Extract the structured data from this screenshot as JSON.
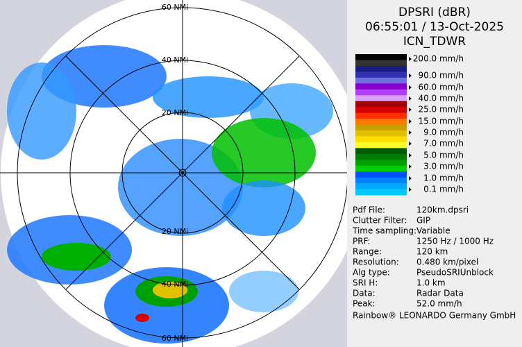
{
  "map": {
    "ring_labels_top": [
      "60 NMi",
      "40 NMi",
      "20 NMi"
    ],
    "ring_labels_bottom": [
      "20 NMi",
      "40 NMi",
      "60 NMi"
    ]
  },
  "panel": {
    "title": [
      "DPSRI (dBR)",
      "06:55:01 / 13-Oct-2025",
      "ICN_TDWR"
    ],
    "legend_colors": [
      "#000000",
      "#333333",
      "#1a1a80",
      "#3030b0",
      "#7070e0",
      "#8800cc",
      "#b040ff",
      "#d8a0ff",
      "#a00000",
      "#d80000",
      "#ff3000",
      "#ff7a00",
      "#c8a000",
      "#e0c000",
      "#ffe000",
      "#ffff30",
      "#005a00",
      "#007a00",
      "#00a000",
      "#00d000",
      "#0050ff",
      "#0080ff",
      "#00a8ff",
      "#00c8ff"
    ],
    "legend_labels": [
      "200.0 mm/h",
      "90.0 mm/h",
      "60.0 mm/h",
      "40.0 mm/h",
      "25.0 mm/h",
      "15.0 mm/h",
      "9.0 mm/h",
      "7.0 mm/h",
      "5.0 mm/h",
      "3.0 mm/h",
      "1.0 mm/h",
      "0.1 mm/h"
    ],
    "info": [
      [
        "Pdf File:",
        "120km.dpsri"
      ],
      [
        "Clutter Filter:",
        "GIP"
      ],
      [
        "Time sampling:",
        "Variable"
      ],
      [
        "PRF:",
        "1250 Hz / 1000 Hz"
      ],
      [
        "Range:",
        "120 km"
      ],
      [
        "Resolution:",
        "0.480 km/pixel"
      ],
      [
        "Alg type:",
        "PseudoSRIUnblock"
      ],
      [
        "SRI H:",
        "1.0 km"
      ],
      [
        "Data:",
        "Radar Data"
      ],
      [
        "Peak:",
        "52.0 mm/h"
      ]
    ],
    "footer": "Rainbow® LEONARDO Germany GmbH"
  }
}
